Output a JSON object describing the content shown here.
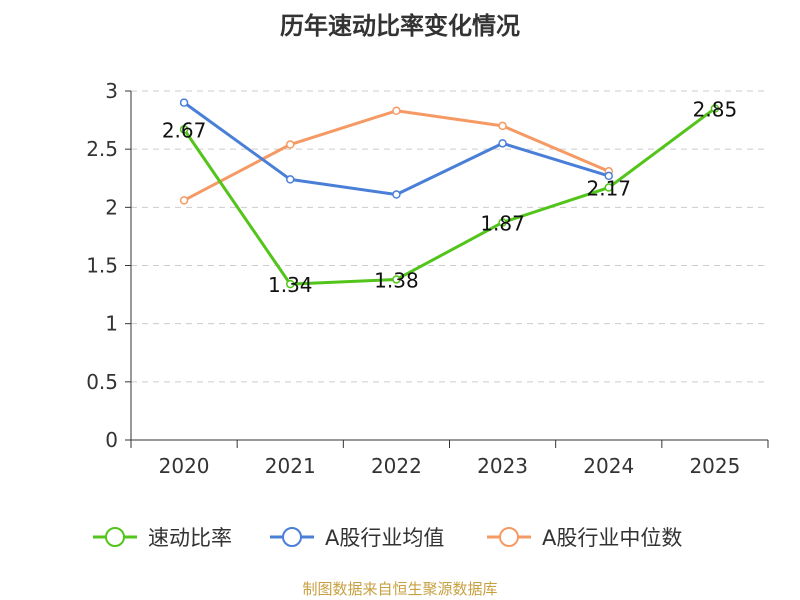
{
  "chart_data": {
    "type": "line",
    "title": "历年速动比率变化情况",
    "categories": [
      "2020",
      "2021",
      "2022",
      "2023",
      "2024",
      "2025"
    ],
    "ylim": [
      0,
      3
    ],
    "yticks": [
      0,
      0.5,
      1,
      1.5,
      2,
      2.5,
      3
    ],
    "ytick_labels": [
      "0",
      "0.5",
      "1",
      "1.5",
      "2",
      "2.5",
      "3"
    ],
    "grid": true,
    "legend_position": "bottom",
    "series": [
      {
        "name": "速动比率",
        "values": [
          2.67,
          1.34,
          1.38,
          1.87,
          2.17,
          2.85
        ],
        "data_labels": [
          "2.67",
          "1.34",
          "1.38",
          "1.87",
          "2.17",
          "2.85"
        ],
        "color": "#52c41a"
      },
      {
        "name": "A股行业均值",
        "values": [
          2.9,
          2.24,
          2.11,
          2.55,
          2.27,
          null
        ],
        "color": "#4a7fd8"
      },
      {
        "name": "A股行业中位数",
        "values": [
          2.06,
          2.54,
          2.83,
          2.7,
          2.31,
          null
        ],
        "color": "#f59a64"
      }
    ]
  },
  "footer": {
    "text": "制图数据来自恒生聚源数据库",
    "color": "#c8a040"
  },
  "colors": {
    "axis": "#333333",
    "grid": "#cccccc",
    "text": "#333333"
  }
}
